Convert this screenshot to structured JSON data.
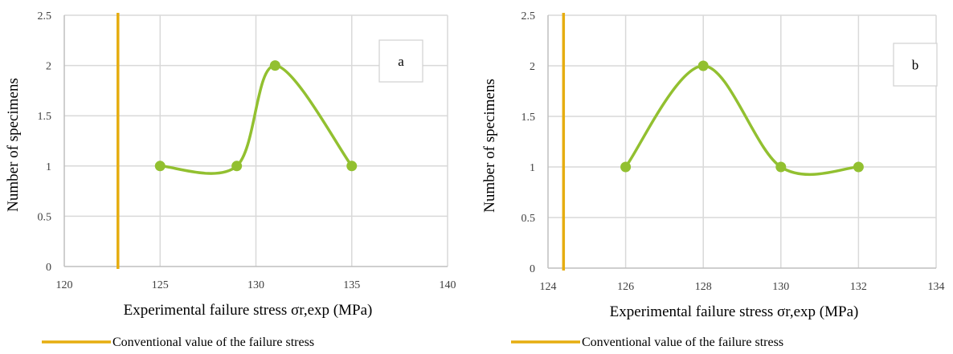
{
  "colors": {
    "series": "#92c030",
    "conventional_line": "#e6ad10",
    "grid": "#d9d9d9",
    "axis": "#bfbfbf"
  },
  "chart_data": [
    {
      "type": "line",
      "panel_label": "a",
      "xlabel": "Experimental failure stress σr,exp (MPa)",
      "ylabel": "Number of specimens",
      "xlim": [
        120,
        140
      ],
      "ylim": [
        0,
        2.5
      ],
      "x_ticks": [
        "120",
        "125",
        "130",
        "135",
        "140"
      ],
      "y_ticks": [
        "0",
        "0.5",
        "1",
        "1.5",
        "2",
        "2.5"
      ],
      "x_tick_values": [
        120,
        125,
        130,
        135,
        140
      ],
      "y_tick_values": [
        0,
        0.5,
        1,
        1.5,
        2,
        2.5
      ],
      "grid": true,
      "smooth": true,
      "series": [
        {
          "x": [
            125,
            129,
            131,
            135
          ],
          "values": [
            1,
            1,
            2,
            1
          ]
        }
      ],
      "reference_line": {
        "x": 122.8,
        "label": "Conventional value of the failure stress"
      },
      "legend_position": "bottom-left"
    },
    {
      "type": "line",
      "panel_label": "b",
      "xlabel": "Experimental failure stress σr,exp (MPa)",
      "ylabel": "Number of specimens",
      "xlim": [
        124,
        134
      ],
      "ylim": [
        0,
        2.5
      ],
      "x_ticks": [
        "124",
        "126",
        "128",
        "130",
        "132",
        "134"
      ],
      "y_ticks": [
        "0",
        "0.5",
        "1",
        "1.5",
        "2",
        "2.5"
      ],
      "x_tick_values": [
        124,
        126,
        128,
        130,
        132,
        134
      ],
      "y_tick_values": [
        0,
        0.5,
        1,
        1.5,
        2,
        2.5
      ],
      "grid": true,
      "smooth": true,
      "series": [
        {
          "x": [
            126,
            128,
            130,
            132
          ],
          "values": [
            1,
            2,
            1,
            1
          ]
        }
      ],
      "reference_line": {
        "x": 124.4,
        "label": "Conventional value of the failure stress"
      },
      "legend_position": "bottom-left"
    }
  ]
}
